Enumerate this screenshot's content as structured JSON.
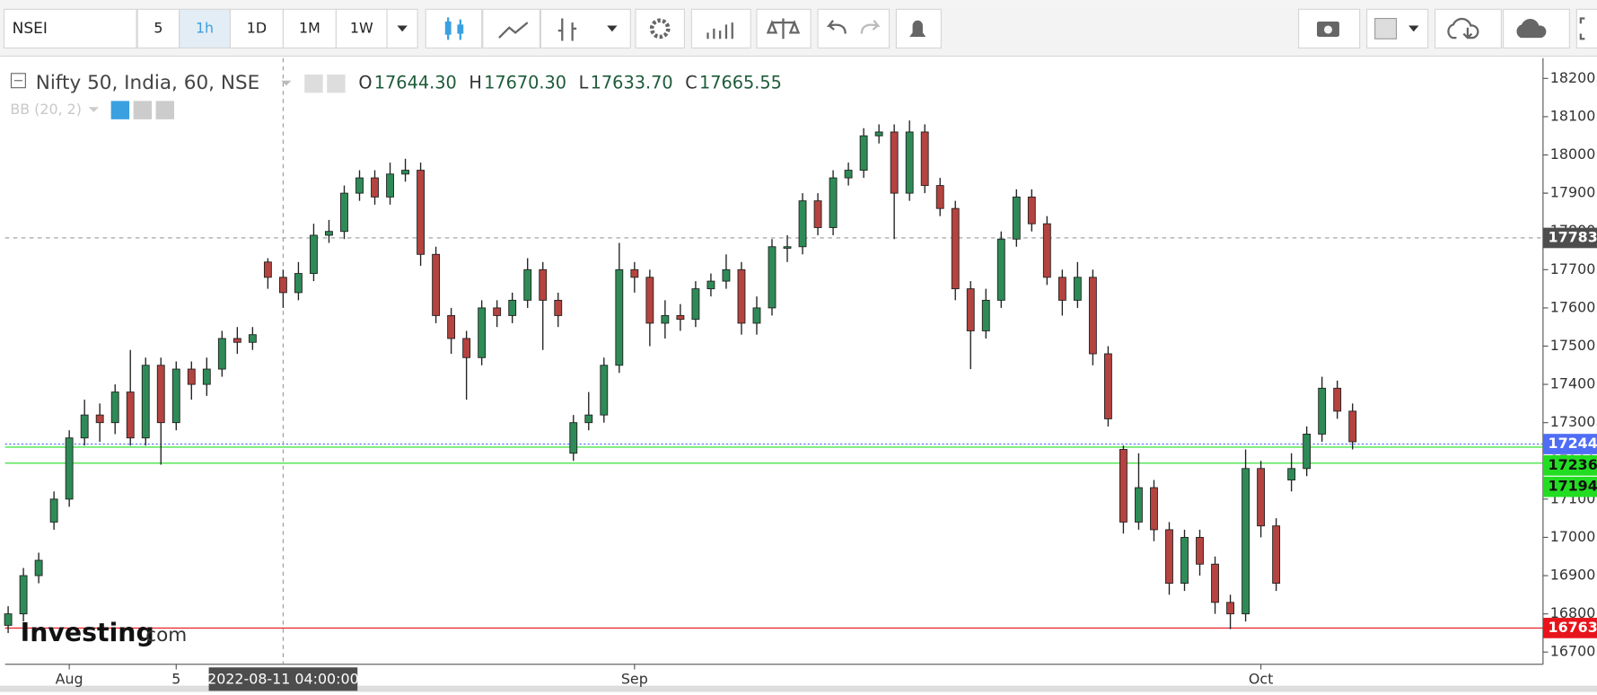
{
  "toolbar": {
    "symbol": "NSEI",
    "intervals": [
      "5",
      "1h",
      "1D",
      "1M",
      "1W"
    ],
    "active": "1h"
  },
  "legend": {
    "title": "Nifty 50, India, 60, NSE",
    "items": [
      {
        "key": "O",
        "value": "17644.30"
      },
      {
        "key": "H",
        "value": "17670.30"
      },
      {
        "key": "L",
        "value": "17633.70"
      },
      {
        "key": "C",
        "value": "17665.55"
      }
    ],
    "indicator": "BB (20, 2)"
  },
  "logo": {
    "brand": "Investing",
    "suffix": ".com"
  },
  "chart_data": {
    "type": "candlestick",
    "up_color": "#2e8b57",
    "down_color": "#b5433f",
    "categories": [
      null,
      null,
      null,
      null,
      "Aug",
      null,
      null,
      null,
      null,
      null,
      null,
      "5",
      null,
      null,
      null,
      null,
      null,
      null,
      "2022-08-11 04:00:00",
      null,
      null,
      null,
      null,
      null,
      null,
      null,
      null,
      null,
      null,
      null,
      null,
      null,
      null,
      null,
      null,
      null,
      null,
      null,
      null,
      null,
      null,
      "Sep",
      null,
      null,
      null,
      null,
      null,
      null,
      null,
      null,
      null,
      null,
      null,
      null,
      null,
      null,
      null,
      null,
      null,
      null,
      null,
      null,
      null,
      null,
      null,
      null,
      null,
      null,
      null,
      null,
      null,
      null,
      null,
      null,
      null,
      null,
      null,
      null,
      null,
      null,
      null,
      null,
      "Oct",
      null,
      null,
      null,
      null,
      null,
      null
    ],
    "open": [
      16770,
      16800,
      16900,
      17040,
      17100,
      17260,
      17320,
      17300,
      17380,
      17260,
      17450,
      17300,
      17440,
      17400,
      17440,
      17520,
      17510,
      17720,
      17680,
      17640,
      17690,
      17790,
      17800,
      17900,
      17940,
      17890,
      17950,
      17960,
      17740,
      17580,
      17520,
      17470,
      17600,
      17580,
      17620,
      17700,
      17620,
      17220,
      17300,
      17320,
      17450,
      17700,
      17680,
      17560,
      17580,
      17570,
      17650,
      17670,
      17700,
      17560,
      17600,
      17760,
      17760,
      17880,
      17810,
      17940,
      17960,
      18050,
      18060,
      17900,
      18060,
      17920,
      17860,
      17650,
      17540,
      17620,
      17780,
      17890,
      17820,
      17680,
      17620,
      17680,
      17480,
      17230,
      17040,
      17130,
      17020,
      16880,
      17000,
      16930,
      16830,
      16800,
      17180,
      17030,
      17150,
      17180,
      17270,
      17390,
      17330
    ],
    "high": [
      16820,
      16920,
      16960,
      17120,
      17280,
      17360,
      17350,
      17400,
      17490,
      17470,
      17470,
      17460,
      17460,
      17470,
      17540,
      17550,
      17550,
      17730,
      17700,
      17720,
      17820,
      17830,
      17920,
      17960,
      17960,
      17980,
      17990,
      17980,
      17760,
      17600,
      17540,
      17620,
      17620,
      17640,
      17730,
      17720,
      17640,
      17320,
      17380,
      17470,
      17770,
      17720,
      17700,
      17620,
      17610,
      17670,
      17690,
      17740,
      17720,
      17630,
      17780,
      17790,
      17900,
      17900,
      17960,
      17980,
      18070,
      18080,
      18080,
      18090,
      18080,
      17940,
      17880,
      17670,
      17650,
      17800,
      17910,
      17910,
      17840,
      17700,
      17720,
      17700,
      17500,
      17240,
      17220,
      17150,
      17040,
      17020,
      17020,
      16950,
      16850,
      17230,
      17200,
      17050,
      17220,
      17290,
      17420,
      17410,
      17350
    ],
    "low": [
      16750,
      16780,
      16880,
      17020,
      17080,
      17240,
      17250,
      17270,
      17240,
      17240,
      17190,
      17280,
      17360,
      17370,
      17420,
      17480,
      17490,
      17650,
      17600,
      17620,
      17670,
      17770,
      17780,
      17880,
      17870,
      17870,
      17930,
      17710,
      17560,
      17480,
      17360,
      17450,
      17550,
      17560,
      17600,
      17490,
      17550,
      17200,
      17280,
      17300,
      17430,
      17640,
      17500,
      17520,
      17540,
      17550,
      17630,
      17650,
      17530,
      17530,
      17580,
      17720,
      17740,
      17790,
      17790,
      17920,
      17940,
      18030,
      17780,
      17880,
      17900,
      17840,
      17620,
      17440,
      17520,
      17600,
      17760,
      17800,
      17660,
      17580,
      17600,
      17450,
      17290,
      17010,
      17020,
      16990,
      16850,
      16860,
      16900,
      16800,
      16760,
      16780,
      17000,
      16860,
      17120,
      17160,
      17250,
      17310,
      17230
    ],
    "close": [
      16800,
      16900,
      16940,
      17100,
      17260,
      17320,
      17300,
      17380,
      17260,
      17450,
      17300,
      17440,
      17400,
      17440,
      17520,
      17510,
      17530,
      17680,
      17640,
      17690,
      17790,
      17800,
      17900,
      17940,
      17890,
      17950,
      17960,
      17740,
      17580,
      17520,
      17470,
      17600,
      17580,
      17620,
      17700,
      17620,
      17580,
      17300,
      17320,
      17450,
      17700,
      17680,
      17560,
      17580,
      17570,
      17650,
      17670,
      17700,
      17560,
      17600,
      17760,
      17760,
      17880,
      17810,
      17940,
      17960,
      18050,
      18060,
      17900,
      18060,
      17920,
      17860,
      17650,
      17540,
      17620,
      17780,
      17890,
      17820,
      17680,
      17620,
      17680,
      17480,
      17310,
      17040,
      17130,
      17020,
      16880,
      17000,
      16930,
      16830,
      16800,
      17180,
      17030,
      16880,
      17180,
      17270,
      17390,
      17330,
      17250
    ],
    "ylim": [
      16668,
      18253
    ],
    "yticks": [
      {
        "value": 16700,
        "label": "16700."
      },
      {
        "value": 16800,
        "label": "16800."
      },
      {
        "value": 16900,
        "label": "16900."
      },
      {
        "value": 17000,
        "label": "17000."
      },
      {
        "value": 17100,
        "label": "17100."
      },
      {
        "value": 17200,
        "label": "17200."
      },
      {
        "value": 17300,
        "label": "17300."
      },
      {
        "value": 17400,
        "label": "17400."
      },
      {
        "value": 17500,
        "label": "17500."
      },
      {
        "value": 17600,
        "label": "17600."
      },
      {
        "value": 17700,
        "label": "17700."
      },
      {
        "value": 17800,
        "label": "17800."
      },
      {
        "value": 17900,
        "label": "17900."
      },
      {
        "value": 18000,
        "label": "18000."
      },
      {
        "value": 18100,
        "label": "18100."
      },
      {
        "value": 18200,
        "label": "18200."
      }
    ],
    "crosshair": {
      "x": "2022-08-11 04:00:00",
      "y": 17783,
      "y_label": "17783."
    },
    "levels": [
      {
        "value": 17244,
        "label": "17244.",
        "color": "#4f6df5",
        "style": "dotted"
      },
      {
        "value": 17236,
        "label": "17236.",
        "color": "#22dd22",
        "style": "solid"
      },
      {
        "value": 17194,
        "label": "17194.",
        "color": "#22dd22",
        "style": "solid"
      },
      {
        "value": 16763,
        "label": "16763.",
        "color": "#e8141b",
        "style": "solid"
      }
    ],
    "grid": false
  }
}
